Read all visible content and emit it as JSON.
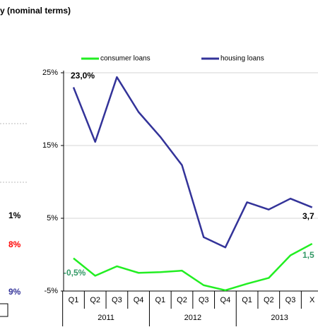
{
  "chart_data": {
    "type": "line",
    "title": "y (nominal terms)",
    "fragments": [
      {
        "text": "1%",
        "color": "#000000"
      },
      {
        "text": "8%",
        "color": "#ff0000"
      },
      {
        "text": "9%",
        "color": "#333399"
      }
    ],
    "categories": [
      "Q1",
      "Q2",
      "Q3",
      "Q4",
      "Q1",
      "Q2",
      "Q3",
      "Q4",
      "Q1",
      "Q2",
      "Q3",
      "X"
    ],
    "years": [
      "2011",
      "2012",
      "2013"
    ],
    "series": [
      {
        "name": "consumer loans",
        "color": "#22ee22",
        "values": [
          -0.5,
          -2.9,
          -1.6,
          -2.5,
          -2.4,
          -2.2,
          -4.2,
          -4.9,
          -4.0,
          -3.2,
          -0.1,
          1.5
        ]
      },
      {
        "name": "housing loans",
        "color": "#333399",
        "values": [
          23.0,
          15.5,
          24.4,
          19.6,
          16.2,
          12.3,
          2.4,
          1.0,
          7.2,
          6.2,
          7.7,
          6.5
        ]
      }
    ],
    "annotations": [
      {
        "text": "23,0%",
        "color": "#000000"
      },
      {
        "text": "-0,5%",
        "color": "#339966"
      },
      {
        "text": "3,7",
        "color": "#000000"
      },
      {
        "text": "1,5",
        "color": "#339966"
      }
    ],
    "ylim": [
      -5,
      25
    ],
    "yticks": [
      {
        "value": -5,
        "label": "-5%"
      },
      {
        "value": 5,
        "label": "5%"
      },
      {
        "value": 15,
        "label": "15%"
      },
      {
        "value": 25,
        "label": "25%"
      }
    ],
    "grid": true
  }
}
